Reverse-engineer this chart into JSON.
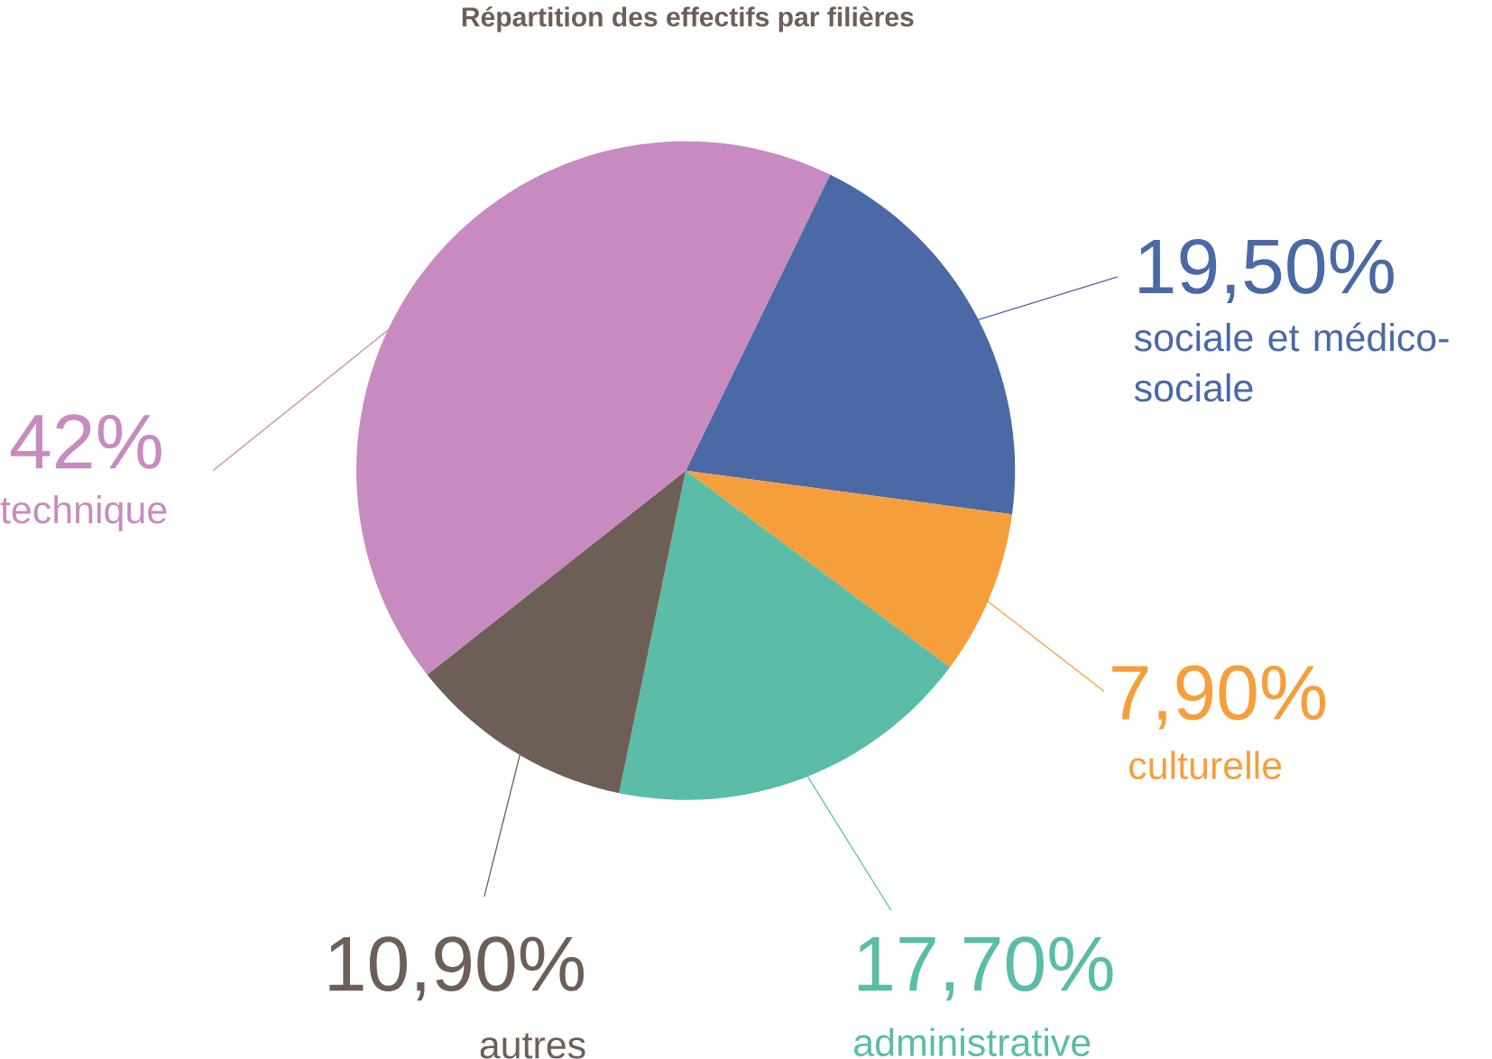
{
  "chart_data": {
    "type": "pie",
    "title": "Répartition des effectifs par filières",
    "categories": [
      "sociale et médico-sociale",
      "culturelle",
      "administrative",
      "autres",
      "technique"
    ],
    "values": [
      19.5,
      7.9,
      17.7,
      10.9,
      42
    ],
    "value_labels": [
      "19,50%",
      "7,90%",
      "17,70%",
      "10,90%",
      "42%"
    ],
    "colors": [
      "#4a69a5",
      "#f59f3c",
      "#5bbca8",
      "#6d5f58",
      "#c78bbf"
    ]
  }
}
